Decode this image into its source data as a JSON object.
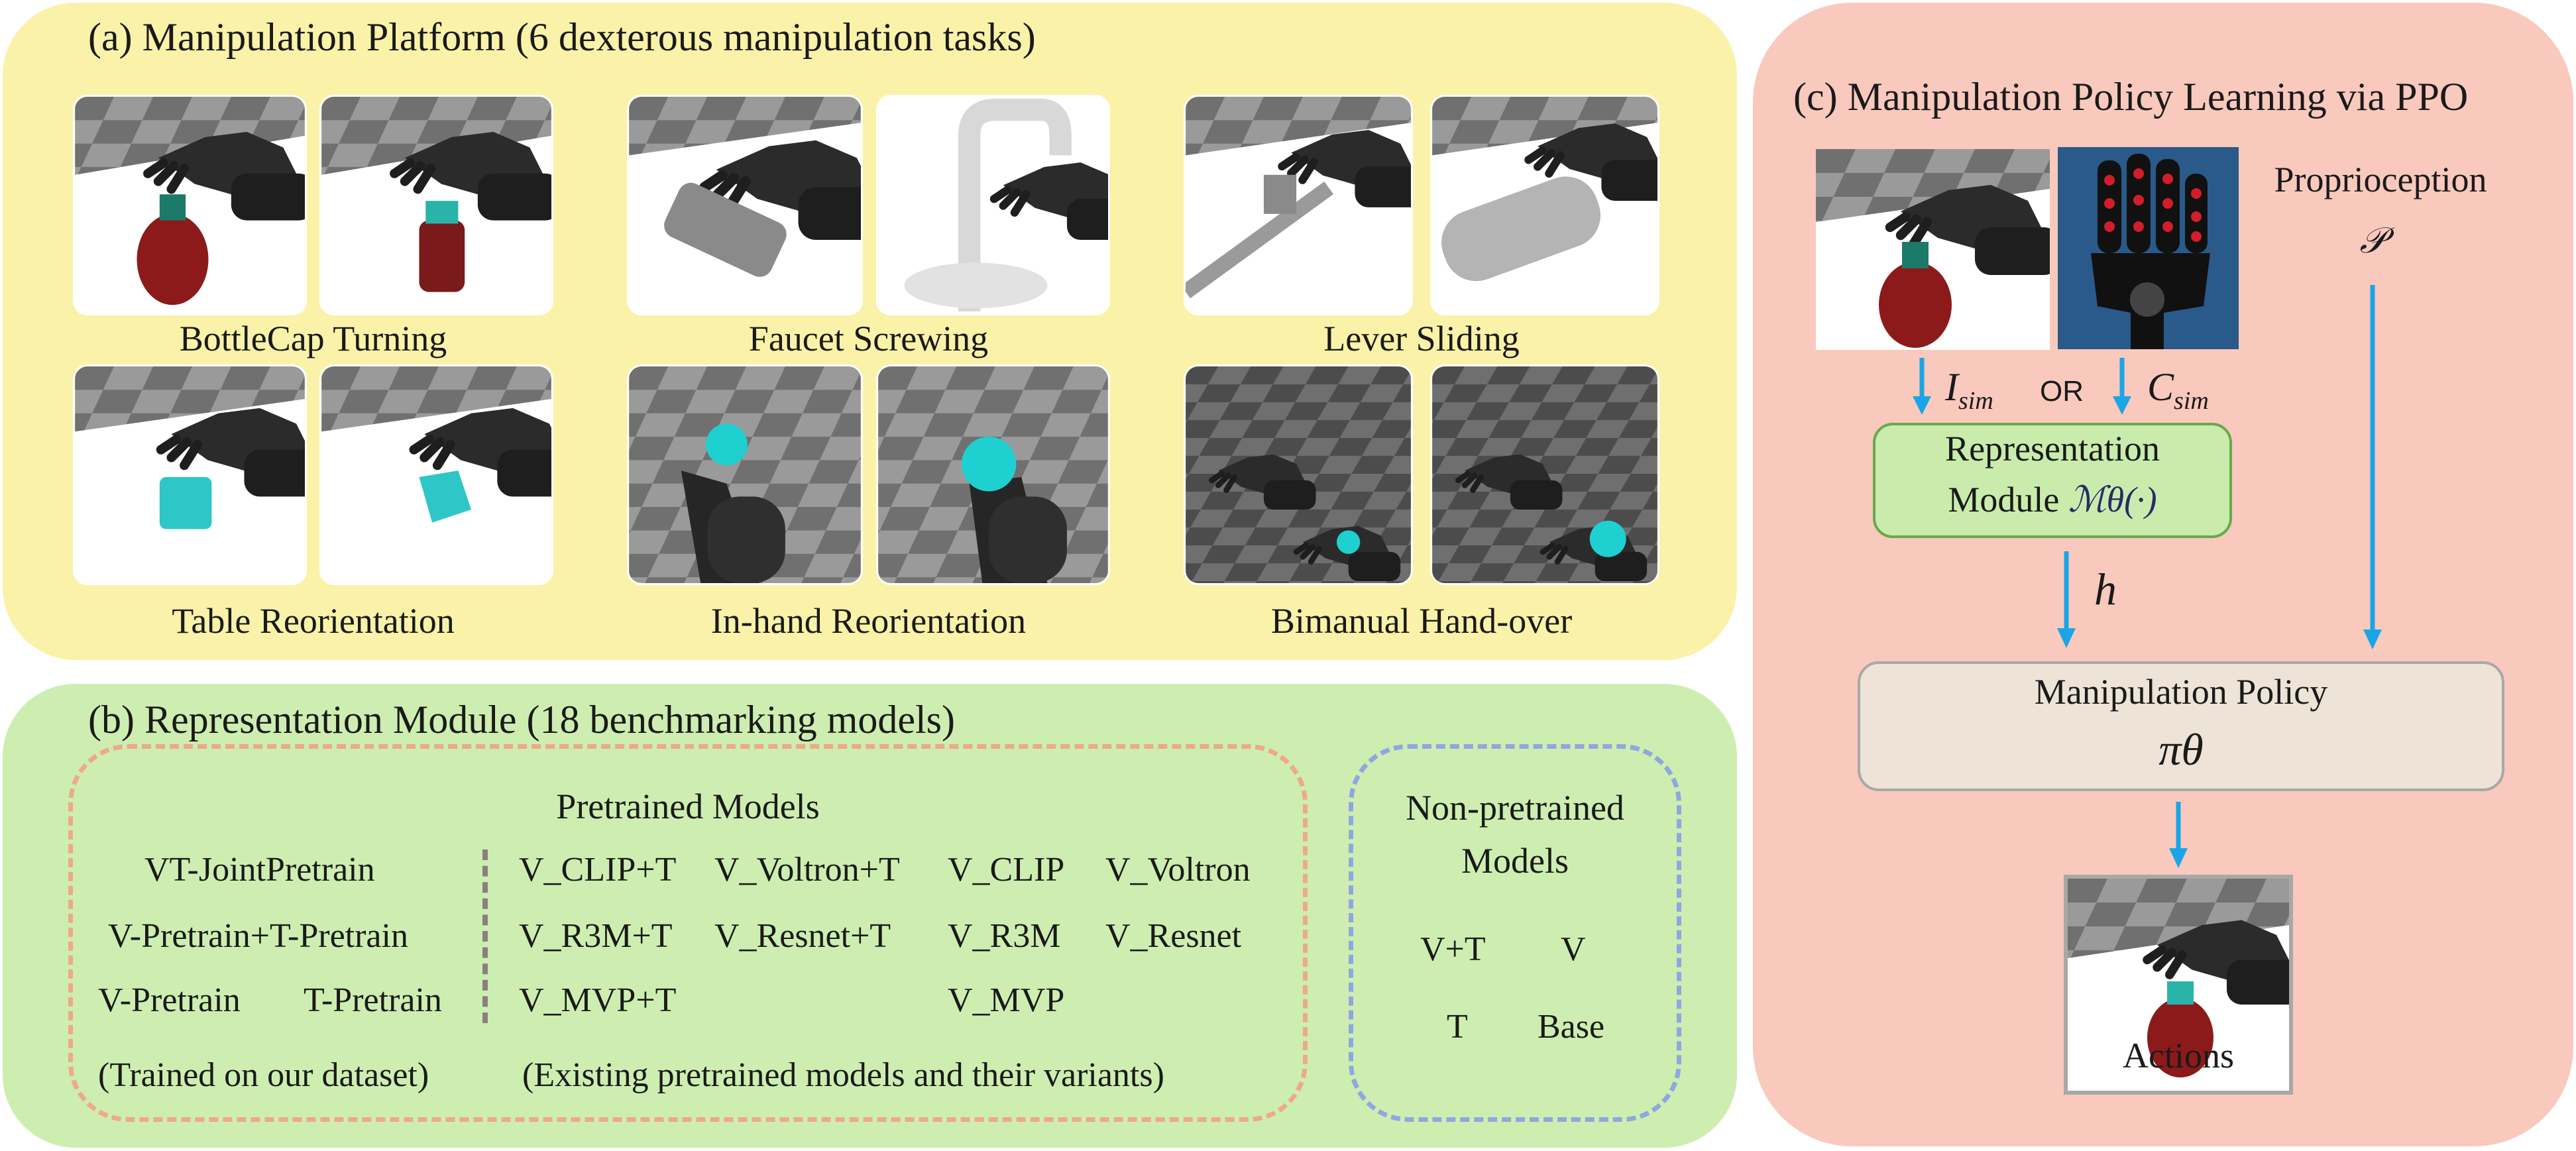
{
  "panel_a": {
    "title": "(a) Manipulation Platform (6 dexterous manipulation tasks)",
    "tasks": [
      {
        "label": "BottleCap Turning"
      },
      {
        "label": "Faucet Screwing"
      },
      {
        "label": "Lever Sliding"
      },
      {
        "label": "Table Reorientation"
      },
      {
        "label": "In-hand Reorientation"
      },
      {
        "label": "Bimanual Hand-over"
      }
    ]
  },
  "panel_b": {
    "title": "(b) Representation Module (18 benchmarking models)",
    "pretrained": {
      "heading": "Pretrained Models",
      "ours": [
        "VT-JointPretrain",
        "V-Pretrain+T-Pretrain",
        "V-Pretrain",
        "T-Pretrain"
      ],
      "ours_caption": "(Trained on our dataset)",
      "existing": [
        "V_CLIP+T",
        "V_Voltron+T",
        "V_CLIP",
        "V_Voltron",
        "V_R3M+T",
        "V_Resnet+T",
        "V_R3M",
        "V_Resnet",
        "V_MVP+T",
        "V_MVP"
      ],
      "existing_caption": "(Existing pretrained models and their variants)"
    },
    "non_pretrained": {
      "heading_line1": "Non-pretrained",
      "heading_line2": "Models",
      "models": [
        "V+T",
        "V",
        "T",
        "Base"
      ]
    }
  },
  "panel_c": {
    "title": "(c) Manipulation Policy Learning via PPO",
    "proprioception_label": "Proprioception",
    "proprioception_symbol": "𝒫",
    "image_input_symbol": "I",
    "image_input_sub": "sim",
    "or_text": "OR",
    "contact_input_symbol": "C",
    "contact_input_sub": "sim",
    "rep_module_line1": "Representation",
    "rep_module_line2_text": "Module",
    "rep_module_symbol": "ℳθ(·)",
    "hidden_symbol": "h",
    "policy_label": "Manipulation Policy",
    "policy_symbol": "πθ",
    "actions_label": "Actions"
  },
  "colors": {
    "panel_a_bg": "#faf2a8",
    "panel_b_bg": "#cdeeb0",
    "panel_c_bg": "#f9c9bd",
    "arrow": "#1aa6e6",
    "dash_orange": "#f0a88a",
    "dash_blue": "#8fa7e0"
  }
}
